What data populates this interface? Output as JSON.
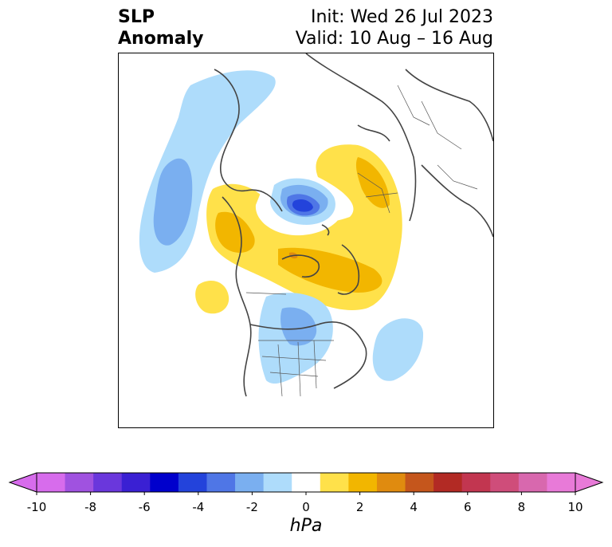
{
  "title": {
    "left_line1": "SLP",
    "left_line2": "Anomaly",
    "right_line1": "Init: Wed 26 Jul 2023",
    "right_line2": "Valid: 10 Aug – 16 Aug"
  },
  "map": {
    "projection": "north-polar-stereographic",
    "field": "sea-level-pressure-anomaly",
    "coastline_color": "#444444",
    "border_color": "#555555"
  },
  "colorbar": {
    "unit_label": "hPa",
    "extend": "both",
    "tick_labels": [
      "-10",
      "-8",
      "-6",
      "-4",
      "-2",
      "0",
      "2",
      "4",
      "6",
      "8",
      "10"
    ],
    "levels": [
      -10,
      -9,
      -8,
      -7,
      -6,
      -5,
      -4,
      -3,
      -2,
      -1,
      1,
      2,
      3,
      4,
      5,
      6,
      7,
      8,
      9,
      10
    ],
    "under_color": "#d76cec",
    "over_color": "#e87ad8",
    "colors": [
      "#d76cec",
      "#a052e0",
      "#6a37dc",
      "#3a20d3",
      "#0000cc",
      "#2343db",
      "#4f76e6",
      "#7aaff0",
      "#aedcfb",
      "#ffffff",
      "#ffe14a",
      "#f2b600",
      "#e08b0f",
      "#c5561c",
      "#b22a24",
      "#c23650",
      "#cf4d7a",
      "#d868ae",
      "#e87ad8"
    ]
  }
}
